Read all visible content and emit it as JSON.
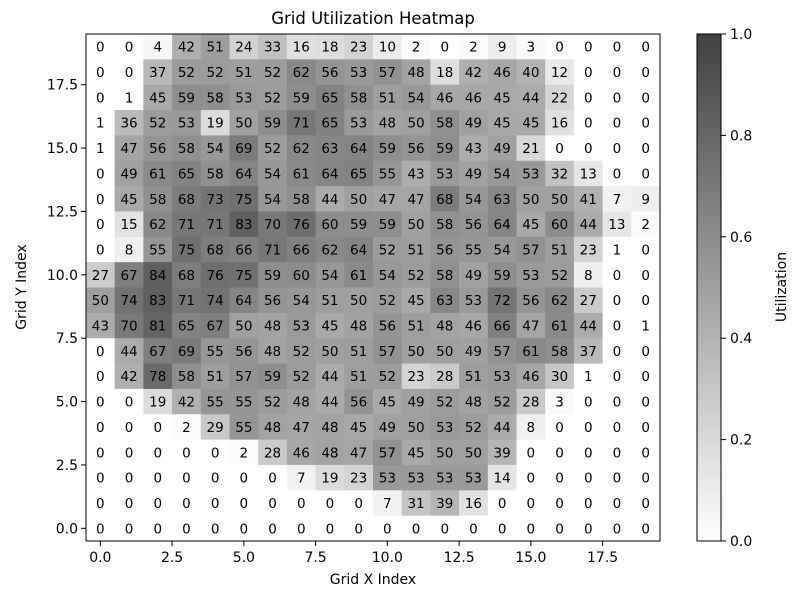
{
  "chart_data": {
    "type": "heatmap",
    "title": "Grid Utilization Heatmap",
    "xlabel": "Grid X Index",
    "ylabel": "Grid Y Index",
    "colorbar_label": "Utilization",
    "colormap": "Greys",
    "colormap_low": "#ffffff",
    "colormap_high": "#404040",
    "vmin": 0.0,
    "vmax": 1.0,
    "x_ticks": [
      "0.0",
      "2.5",
      "5.0",
      "7.5",
      "10.0",
      "12.5",
      "15.0",
      "17.5"
    ],
    "y_ticks": [
      "0.0",
      "2.5",
      "5.0",
      "7.5",
      "10.0",
      "12.5",
      "15.0",
      "17.5"
    ],
    "colorbar_ticks": [
      "0.0",
      "0.2",
      "0.4",
      "0.6",
      "0.8",
      "1.0"
    ],
    "rows_top_to_bottom": [
      [
        0,
        0,
        4,
        42,
        51,
        24,
        33,
        16,
        18,
        23,
        10,
        2,
        0,
        2,
        9,
        3,
        0,
        0,
        0,
        0
      ],
      [
        0,
        0,
        37,
        52,
        52,
        51,
        52,
        62,
        56,
        53,
        57,
        48,
        18,
        42,
        46,
        40,
        12,
        0,
        0,
        0
      ],
      [
        0,
        1,
        45,
        59,
        58,
        53,
        52,
        59,
        65,
        58,
        51,
        54,
        46,
        46,
        45,
        44,
        22,
        0,
        0,
        0
      ],
      [
        1,
        36,
        52,
        53,
        19,
        50,
        59,
        71,
        65,
        53,
        48,
        50,
        58,
        49,
        45,
        45,
        16,
        0,
        0,
        0
      ],
      [
        1,
        47,
        56,
        58,
        54,
        69,
        52,
        62,
        63,
        64,
        59,
        56,
        59,
        43,
        49,
        21,
        0,
        0,
        0,
        0
      ],
      [
        0,
        49,
        61,
        65,
        58,
        64,
        54,
        61,
        64,
        65,
        55,
        43,
        53,
        49,
        54,
        53,
        32,
        13,
        0,
        0
      ],
      [
        0,
        45,
        58,
        68,
        73,
        75,
        54,
        58,
        44,
        50,
        47,
        47,
        68,
        54,
        63,
        50,
        50,
        41,
        7,
        9
      ],
      [
        0,
        15,
        62,
        71,
        71,
        83,
        70,
        76,
        60,
        59,
        59,
        50,
        58,
        56,
        64,
        45,
        60,
        44,
        13,
        2
      ],
      [
        0,
        8,
        55,
        75,
        68,
        66,
        71,
        66,
        62,
        64,
        52,
        51,
        56,
        55,
        54,
        57,
        51,
        23,
        1,
        0
      ],
      [
        27,
        67,
        84,
        68,
        76,
        75,
        59,
        60,
        54,
        61,
        54,
        52,
        58,
        49,
        59,
        53,
        52,
        8,
        0,
        0
      ],
      [
        50,
        74,
        83,
        71,
        74,
        64,
        56,
        54,
        51,
        50,
        52,
        45,
        63,
        53,
        72,
        56,
        62,
        27,
        0,
        0
      ],
      [
        43,
        70,
        81,
        65,
        67,
        50,
        48,
        53,
        45,
        48,
        56,
        51,
        48,
        46,
        66,
        47,
        61,
        44,
        0,
        1
      ],
      [
        0,
        44,
        67,
        69,
        55,
        56,
        48,
        52,
        50,
        51,
        57,
        50,
        50,
        49,
        57,
        61,
        58,
        37,
        0,
        0
      ],
      [
        0,
        42,
        78,
        58,
        51,
        57,
        59,
        52,
        44,
        51,
        52,
        23,
        28,
        51,
        53,
        46,
        30,
        1,
        0,
        0
      ],
      [
        0,
        0,
        19,
        42,
        55,
        55,
        52,
        48,
        44,
        56,
        45,
        49,
        52,
        48,
        52,
        28,
        3,
        0,
        0,
        0
      ],
      [
        0,
        0,
        0,
        2,
        29,
        55,
        48,
        47,
        48,
        45,
        49,
        50,
        53,
        52,
        44,
        8,
        0,
        0,
        0,
        0
      ],
      [
        0,
        0,
        0,
        0,
        0,
        2,
        28,
        46,
        48,
        47,
        57,
        45,
        50,
        50,
        39,
        0,
        0,
        0,
        0,
        0
      ],
      [
        0,
        0,
        0,
        0,
        0,
        0,
        0,
        7,
        19,
        23,
        53,
        53,
        53,
        53,
        14,
        0,
        0,
        0,
        0,
        0
      ],
      [
        0,
        0,
        0,
        0,
        0,
        0,
        0,
        0,
        0,
        0,
        7,
        31,
        39,
        16,
        0,
        0,
        0,
        0,
        0,
        0
      ],
      [
        0,
        0,
        0,
        0,
        0,
        0,
        0,
        0,
        0,
        0,
        0,
        0,
        0,
        0,
        0,
        0,
        0,
        0,
        0,
        0
      ]
    ]
  }
}
